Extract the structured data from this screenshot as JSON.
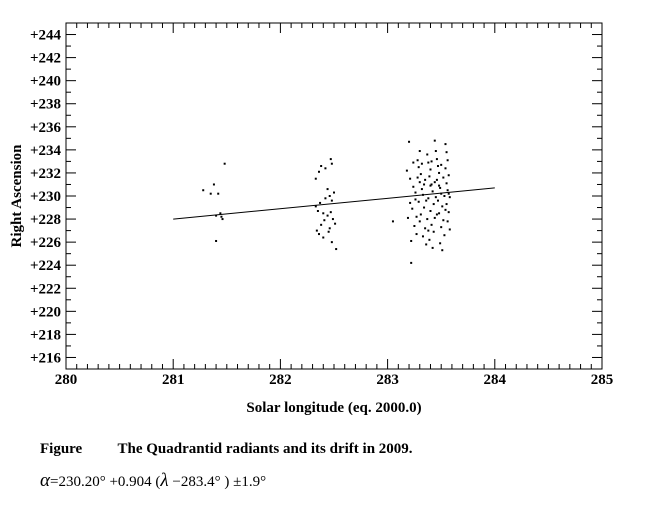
{
  "chart_data": {
    "type": "scatter",
    "xlabel": "Solar longitude (eq. 2000.0)",
    "ylabel": "Right Ascension",
    "xlim": [
      280,
      285
    ],
    "ylim": [
      215,
      245
    ],
    "x_ticks": [
      "280",
      "281",
      "282",
      "283",
      "284",
      "285"
    ],
    "y_ticks": [
      "+216",
      "+218",
      "+220",
      "+222",
      "+224",
      "+226",
      "+228",
      "+230",
      "+232",
      "+234",
      "+236",
      "+238",
      "+240",
      "+242",
      "+244"
    ],
    "grid": false,
    "legend": "none",
    "trend_line": {
      "x": [
        281.0,
        284.0
      ],
      "y": [
        228.0,
        230.7
      ]
    },
    "series": [
      {
        "points": [
          [
            281.28,
            230.5
          ],
          [
            281.35,
            230.2
          ],
          [
            281.38,
            231.0
          ],
          [
            281.42,
            230.2
          ],
          [
            281.4,
            228.3
          ],
          [
            281.44,
            228.5
          ],
          [
            281.46,
            228.0
          ],
          [
            281.48,
            232.8
          ],
          [
            281.45,
            228.2
          ],
          [
            281.4,
            226.1
          ],
          [
            282.33,
            231.5
          ],
          [
            282.36,
            232.1
          ],
          [
            282.38,
            232.6
          ],
          [
            282.42,
            232.4
          ],
          [
            282.47,
            233.2
          ],
          [
            282.48,
            232.8
          ],
          [
            282.33,
            229.1
          ],
          [
            282.35,
            228.7
          ],
          [
            282.37,
            229.4
          ],
          [
            282.4,
            228.5
          ],
          [
            282.42,
            229.8
          ],
          [
            282.44,
            230.6
          ],
          [
            282.46,
            230.0
          ],
          [
            282.48,
            229.6
          ],
          [
            282.5,
            230.3
          ],
          [
            282.38,
            227.5
          ],
          [
            282.41,
            227.9
          ],
          [
            282.44,
            228.3
          ],
          [
            282.46,
            227.2
          ],
          [
            282.49,
            228.0
          ],
          [
            282.51,
            227.6
          ],
          [
            282.36,
            226.7
          ],
          [
            282.4,
            226.4
          ],
          [
            282.45,
            226.9
          ],
          [
            282.48,
            226.0
          ],
          [
            282.52,
            225.4
          ],
          [
            282.34,
            227.0
          ],
          [
            282.47,
            228.6
          ],
          [
            283.05,
            227.8
          ],
          [
            283.2,
            234.7
          ],
          [
            283.22,
            224.2
          ],
          [
            283.18,
            232.2
          ],
          [
            283.21,
            231.5
          ],
          [
            283.24,
            230.8
          ],
          [
            283.26,
            229.7
          ],
          [
            283.23,
            228.9
          ],
          [
            283.19,
            228.1
          ],
          [
            283.25,
            227.4
          ],
          [
            283.27,
            226.7
          ],
          [
            283.22,
            226.1
          ],
          [
            283.28,
            233.1
          ],
          [
            283.29,
            232.5
          ],
          [
            283.31,
            231.9
          ],
          [
            283.3,
            231.2
          ],
          [
            283.32,
            230.6
          ],
          [
            283.33,
            230.1
          ],
          [
            283.29,
            229.5
          ],
          [
            283.34,
            229.0
          ],
          [
            283.31,
            228.4
          ],
          [
            283.3,
            227.8
          ],
          [
            283.35,
            227.2
          ],
          [
            283.33,
            226.5
          ],
          [
            283.36,
            225.8
          ],
          [
            283.37,
            233.6
          ],
          [
            283.38,
            232.9
          ],
          [
            283.4,
            232.3
          ],
          [
            283.39,
            231.7
          ],
          [
            283.41,
            231.0
          ],
          [
            283.42,
            230.4
          ],
          [
            283.38,
            229.8
          ],
          [
            283.43,
            229.3
          ],
          [
            283.4,
            228.7
          ],
          [
            283.44,
            228.1
          ],
          [
            283.41,
            227.5
          ],
          [
            283.43,
            226.9
          ],
          [
            283.39,
            226.2
          ],
          [
            283.42,
            225.5
          ],
          [
            283.44,
            234.8
          ],
          [
            283.45,
            233.9
          ],
          [
            283.46,
            233.2
          ],
          [
            283.47,
            232.6
          ],
          [
            283.48,
            232.0
          ],
          [
            283.46,
            231.4
          ],
          [
            283.49,
            230.7
          ],
          [
            283.5,
            230.2
          ],
          [
            283.47,
            229.6
          ],
          [
            283.51,
            229.1
          ],
          [
            283.48,
            228.5
          ],
          [
            283.52,
            227.9
          ],
          [
            283.5,
            227.3
          ],
          [
            283.53,
            226.6
          ],
          [
            283.49,
            225.9
          ],
          [
            283.51,
            225.3
          ],
          [
            283.54,
            234.5
          ],
          [
            283.55,
            233.8
          ],
          [
            283.56,
            233.1
          ],
          [
            283.54,
            232.4
          ],
          [
            283.57,
            231.8
          ],
          [
            283.55,
            231.1
          ],
          [
            283.56,
            230.5
          ],
          [
            283.58,
            229.9
          ],
          [
            283.55,
            229.3
          ],
          [
            283.57,
            228.6
          ],
          [
            283.56,
            227.8
          ],
          [
            283.58,
            227.1
          ],
          [
            283.26,
            230.3
          ],
          [
            283.28,
            231.6
          ],
          [
            283.32,
            232.8
          ],
          [
            283.35,
            231.4
          ],
          [
            283.36,
            229.6
          ],
          [
            283.37,
            228.0
          ],
          [
            283.4,
            230.9
          ],
          [
            283.44,
            231.2
          ],
          [
            283.45,
            229.9
          ],
          [
            283.46,
            228.4
          ],
          [
            283.52,
            231.6
          ],
          [
            283.53,
            230.0
          ],
          [
            283.54,
            228.8
          ],
          [
            283.24,
            232.9
          ],
          [
            283.27,
            228.2
          ],
          [
            283.34,
            231.0
          ],
          [
            283.41,
            233.0
          ],
          [
            283.48,
            230.9
          ],
          [
            283.3,
            233.9
          ],
          [
            283.38,
            227.0
          ],
          [
            283.5,
            232.7
          ],
          [
            283.57,
            230.2
          ],
          [
            283.21,
            229.4
          ]
        ]
      }
    ]
  },
  "caption": {
    "figure_label": "Figure",
    "text": "The Quadrantid radiants and its drift in 2009."
  },
  "formula": {
    "alpha": "α",
    "part1": "=230.20°  +0.904 (",
    "lambda": "λ",
    "part2": " −283.4° )   ±1.9°"
  }
}
